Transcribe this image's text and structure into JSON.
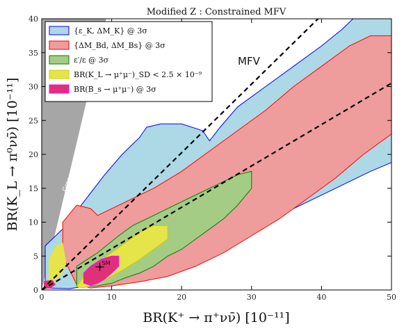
{
  "chart_data": {
    "type": "area",
    "title": "Modified Z  :  Constrained MFV",
    "xlabel": "BR(K⁺ → π⁺νν̄) [10⁻¹¹]",
    "ylabel": "BR(K_L → π⁰νν̄) [10⁻¹¹]",
    "xlim": [
      0,
      50
    ],
    "ylim": [
      0,
      40
    ],
    "xticks": [
      0,
      10,
      20,
      30,
      40,
      50
    ],
    "yticks": [
      0,
      5,
      10,
      15,
      20,
      25,
      30,
      35,
      40
    ],
    "grid": false,
    "legend_position": "top-left",
    "series": [
      {
        "name": "{ε_K, ΔM_K} @ 3σ",
        "fill": "#add8e6",
        "stroke": "#0000ff",
        "polygon": [
          [
            0.5,
            0.3
          ],
          [
            0.5,
            6.5
          ],
          [
            3,
            9
          ],
          [
            6,
            13
          ],
          [
            9,
            17
          ],
          [
            11.5,
            20
          ],
          [
            14,
            22.5
          ],
          [
            15,
            24
          ],
          [
            17,
            24.5
          ],
          [
            20,
            24.5
          ],
          [
            23,
            23.5
          ],
          [
            24,
            22
          ],
          [
            25.5,
            24
          ],
          [
            28,
            27
          ],
          [
            32,
            30
          ],
          [
            36,
            33
          ],
          [
            40,
            36
          ],
          [
            43,
            38.5
          ],
          [
            45,
            40.5
          ],
          [
            50,
            40.5
          ],
          [
            50,
            18.8
          ],
          [
            47,
            17.5
          ],
          [
            43,
            15.5
          ],
          [
            38,
            13
          ],
          [
            33,
            10.5
          ],
          [
            28,
            8
          ],
          [
            23,
            6
          ],
          [
            18,
            4
          ],
          [
            14,
            2.5
          ],
          [
            10,
            1.5
          ],
          [
            7,
            0.7
          ],
          [
            4,
            0.2
          ]
        ]
      },
      {
        "name": "{ΔM_Bd, ΔM_Bs} @ 3σ",
        "fill": "#ee9c9c",
        "stroke": "#ff0000",
        "polygon": [
          [
            3,
            5
          ],
          [
            3,
            10
          ],
          [
            5,
            12.5
          ],
          [
            7,
            12
          ],
          [
            8,
            11
          ],
          [
            12,
            13
          ],
          [
            16,
            15
          ],
          [
            20,
            17.5
          ],
          [
            24,
            20.5
          ],
          [
            28,
            23.5
          ],
          [
            32,
            26.5
          ],
          [
            36,
            30
          ],
          [
            40,
            33
          ],
          [
            44,
            36
          ],
          [
            47,
            37.5
          ],
          [
            50,
            37.5
          ],
          [
            50,
            23
          ],
          [
            46,
            20
          ],
          [
            42,
            16.5
          ],
          [
            38,
            13.5
          ],
          [
            34,
            10.5
          ],
          [
            30,
            8
          ],
          [
            26,
            5.5
          ],
          [
            22,
            3.5
          ],
          [
            18,
            2
          ],
          [
            14,
            1.2
          ],
          [
            10,
            0.6
          ],
          [
            7,
            0.3
          ],
          [
            5,
            0.8
          ]
        ]
      },
      {
        "name": "ε′/ε @ 3σ",
        "fill": "#a4cc84",
        "stroke": "#008000",
        "polygon": [
          [
            5,
            0.5
          ],
          [
            5,
            3.5
          ],
          [
            8,
            5.5
          ],
          [
            11,
            8
          ],
          [
            13,
            9.5
          ],
          [
            16,
            11
          ],
          [
            19,
            12.5
          ],
          [
            22,
            14
          ],
          [
            25,
            15.5
          ],
          [
            28,
            17
          ],
          [
            30,
            17.5
          ],
          [
            30,
            15
          ],
          [
            28,
            12.5
          ],
          [
            26,
            10.5
          ],
          [
            24,
            9
          ],
          [
            22,
            7.5
          ],
          [
            20,
            6
          ],
          [
            18,
            5
          ],
          [
            16,
            3.5
          ],
          [
            14,
            2.5
          ],
          [
            12,
            1.8
          ],
          [
            10,
            1
          ],
          [
            8,
            0.6
          ]
        ]
      },
      {
        "name": "BR(K_L → μ⁺μ⁻)_SD < 2.5 × 10⁻⁹",
        "fill": "#e5e54a",
        "stroke": "#cccc00",
        "polygon": [
          [
            5,
            0.5
          ],
          [
            6,
            2
          ],
          [
            8,
            4
          ],
          [
            10,
            5.5
          ],
          [
            12,
            7
          ],
          [
            14,
            8.5
          ],
          [
            16,
            9.5
          ],
          [
            18,
            9.5
          ],
          [
            18,
            7.5
          ],
          [
            16,
            6
          ],
          [
            14,
            4.5
          ],
          [
            12,
            3.2
          ],
          [
            10,
            2
          ],
          [
            8,
            1
          ],
          [
            6,
            0.3
          ]
        ]
      },
      {
        "name": "BR(B_s → μ⁺μ⁻) @ 3σ",
        "fill": "#e0307a",
        "stroke": "#ff00ff",
        "polygon": [
          [
            6,
            1
          ],
          [
            6,
            2.5
          ],
          [
            7,
            3.5
          ],
          [
            8.5,
            4.5
          ],
          [
            10,
            5
          ],
          [
            11,
            5
          ],
          [
            11,
            3.5
          ],
          [
            10,
            2.5
          ],
          [
            9,
            1.6
          ],
          [
            8,
            1
          ],
          [
            7,
            0.7
          ]
        ]
      }
    ],
    "extra_regions": [
      {
        "fill": "#e5e54a",
        "polygon": [
          [
            1,
            1
          ],
          [
            1,
            4.5
          ],
          [
            2,
            6.5
          ],
          [
            3,
            7
          ],
          [
            3.5,
            4
          ],
          [
            3,
            2.5
          ],
          [
            2,
            1.5
          ]
        ]
      },
      {
        "fill": "#e0307a",
        "polygon": [
          [
            0.3,
            0.2
          ],
          [
            0.3,
            1.3
          ],
          [
            1.5,
            1.5
          ],
          [
            2,
            0.8
          ],
          [
            1.2,
            0.2
          ]
        ]
      }
    ],
    "bounded_region": {
      "label": "Grossman-Nir bound",
      "fill": "#a6a6a6",
      "polygon": [
        [
          0,
          0
        ],
        [
          0,
          40
        ],
        [
          9.2,
          40
        ]
      ]
    },
    "reference_lines": [
      {
        "label": "MFV",
        "dash": true,
        "points": [
          [
            0,
            0
          ],
          [
            50,
            30.5
          ]
        ]
      },
      {
        "label": "",
        "dash": true,
        "points": [
          [
            0,
            0
          ],
          [
            40,
            40.5
          ]
        ]
      }
    ],
    "annotations": [
      {
        "label": "SM",
        "x": 8.3,
        "y": 3.4,
        "xerr": 0.6,
        "yerr": 0.6
      }
    ]
  }
}
